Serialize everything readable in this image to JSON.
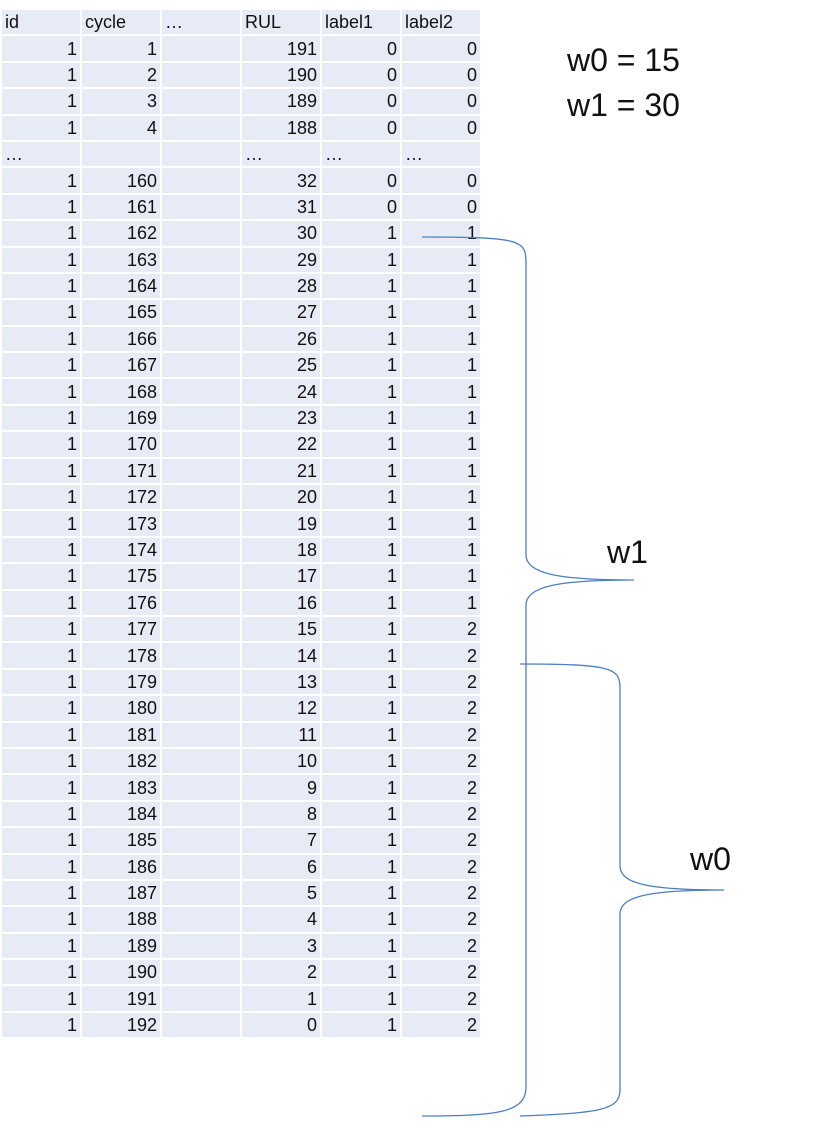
{
  "table": {
    "columns": [
      "id",
      "cycle",
      "…",
      "RUL",
      "label1",
      "label2"
    ],
    "rows": [
      [
        "1",
        "1",
        "",
        "191",
        "0",
        "0"
      ],
      [
        "1",
        "2",
        "",
        "190",
        "0",
        "0"
      ],
      [
        "1",
        "3",
        "",
        "189",
        "0",
        "0"
      ],
      [
        "1",
        "4",
        "",
        "188",
        "0",
        "0"
      ],
      [
        "…",
        "",
        "",
        "…",
        "…",
        "…"
      ],
      [
        "1",
        "160",
        "",
        "32",
        "0",
        "0"
      ],
      [
        "1",
        "161",
        "",
        "31",
        "0",
        "0"
      ],
      [
        "1",
        "162",
        "",
        "30",
        "1",
        "1"
      ],
      [
        "1",
        "163",
        "",
        "29",
        "1",
        "1"
      ],
      [
        "1",
        "164",
        "",
        "28",
        "1",
        "1"
      ],
      [
        "1",
        "165",
        "",
        "27",
        "1",
        "1"
      ],
      [
        "1",
        "166",
        "",
        "26",
        "1",
        "1"
      ],
      [
        "1",
        "167",
        "",
        "25",
        "1",
        "1"
      ],
      [
        "1",
        "168",
        "",
        "24",
        "1",
        "1"
      ],
      [
        "1",
        "169",
        "",
        "23",
        "1",
        "1"
      ],
      [
        "1",
        "170",
        "",
        "22",
        "1",
        "1"
      ],
      [
        "1",
        "171",
        "",
        "21",
        "1",
        "1"
      ],
      [
        "1",
        "172",
        "",
        "20",
        "1",
        "1"
      ],
      [
        "1",
        "173",
        "",
        "19",
        "1",
        "1"
      ],
      [
        "1",
        "174",
        "",
        "18",
        "1",
        "1"
      ],
      [
        "1",
        "175",
        "",
        "17",
        "1",
        "1"
      ],
      [
        "1",
        "176",
        "",
        "16",
        "1",
        "1"
      ],
      [
        "1",
        "177",
        "",
        "15",
        "1",
        "2"
      ],
      [
        "1",
        "178",
        "",
        "14",
        "1",
        "2"
      ],
      [
        "1",
        "179",
        "",
        "13",
        "1",
        "2"
      ],
      [
        "1",
        "180",
        "",
        "12",
        "1",
        "2"
      ],
      [
        "1",
        "181",
        "",
        "11",
        "1",
        "2"
      ],
      [
        "1",
        "182",
        "",
        "10",
        "1",
        "2"
      ],
      [
        "1",
        "183",
        "",
        "9",
        "1",
        "2"
      ],
      [
        "1",
        "184",
        "",
        "8",
        "1",
        "2"
      ],
      [
        "1",
        "185",
        "",
        "7",
        "1",
        "2"
      ],
      [
        "1",
        "186",
        "",
        "6",
        "1",
        "2"
      ],
      [
        "1",
        "187",
        "",
        "5",
        "1",
        "2"
      ],
      [
        "1",
        "188",
        "",
        "4",
        "1",
        "2"
      ],
      [
        "1",
        "189",
        "",
        "3",
        "1",
        "2"
      ],
      [
        "1",
        "190",
        "",
        "2",
        "1",
        "2"
      ],
      [
        "1",
        "191",
        "",
        "1",
        "1",
        "2"
      ],
      [
        "1",
        "192",
        "",
        "0",
        "1",
        "2"
      ]
    ]
  },
  "notes": {
    "w0": "w0 = 15",
    "w1": "w1 = 30"
  },
  "braces": {
    "w1_label": "w1",
    "w0_label": "w0"
  },
  "colors": {
    "cell_fill": "#e6ebf5",
    "brace_line": "#4a7fc1"
  }
}
